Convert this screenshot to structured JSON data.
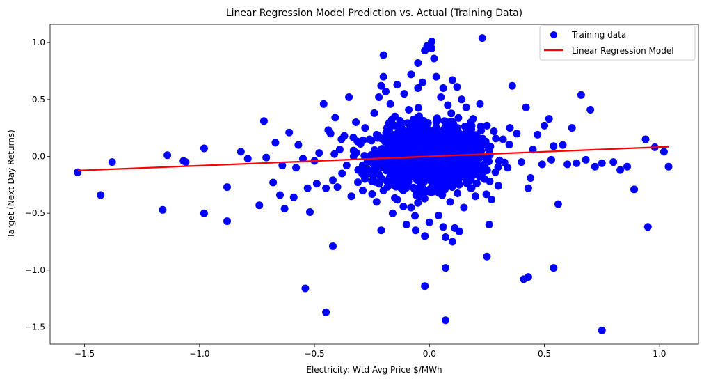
{
  "chart_data": {
    "type": "scatter",
    "title": "Linear Regression Model Prediction vs. Actual (Training Data)",
    "xlabel": "Electricity: Wtd Avg Price $/MWh",
    "ylabel": "Target (Next Day Returns)",
    "xlim": [
      -1.65,
      1.17
    ],
    "ylim": [
      -1.65,
      1.16
    ],
    "xticks": [
      -1.5,
      -1.0,
      -0.5,
      0.0,
      0.5,
      1.0
    ],
    "xtick_labels": [
      "−1.5",
      "−1.0",
      "−0.5",
      "0.0",
      "0.5",
      "1.0"
    ],
    "yticks": [
      -1.5,
      -1.0,
      -0.5,
      0.0,
      0.5,
      1.0
    ],
    "ytick_labels": [
      "−1.5",
      "−1.0",
      "−0.5",
      "0.0",
      "0.5",
      "1.0"
    ],
    "grid": false,
    "legend_position": "top-right",
    "series": [
      {
        "name": "Training data",
        "kind": "scatter",
        "color": "#0000ff",
        "points": [
          [
            -1.53,
            -0.14
          ],
          [
            -1.43,
            -0.34
          ],
          [
            -1.38,
            -0.05
          ],
          [
            -1.16,
            -0.47
          ],
          [
            -1.14,
            0.01
          ],
          [
            -1.07,
            -0.04
          ],
          [
            -1.06,
            -0.05
          ],
          [
            -0.98,
            0.07
          ],
          [
            -0.98,
            -0.5
          ],
          [
            -0.88,
            -0.27
          ],
          [
            -0.88,
            -0.57
          ],
          [
            -0.82,
            0.04
          ],
          [
            -0.79,
            -0.02
          ],
          [
            -0.74,
            -0.43
          ],
          [
            -0.72,
            0.31
          ],
          [
            -0.71,
            -0.01
          ],
          [
            -0.68,
            -0.23
          ],
          [
            -0.67,
            0.12
          ],
          [
            -0.65,
            -0.34
          ],
          [
            -0.64,
            -0.08
          ],
          [
            -0.63,
            -0.46
          ],
          [
            -0.61,
            0.21
          ],
          [
            -0.59,
            -0.36
          ],
          [
            -0.58,
            -0.1
          ],
          [
            -0.57,
            0.1
          ],
          [
            -0.55,
            -0.02
          ],
          [
            -0.53,
            -0.28
          ],
          [
            -0.52,
            -0.49
          ],
          [
            -0.5,
            -0.04
          ],
          [
            -0.49,
            -0.24
          ],
          [
            -0.48,
            0.03
          ],
          [
            -0.46,
            0.46
          ],
          [
            -0.45,
            -0.28
          ],
          [
            -0.44,
            0.23
          ],
          [
            -0.43,
            0.2
          ],
          [
            -0.42,
            -0.21
          ],
          [
            -0.41,
            0.34
          ],
          [
            -0.4,
            -0.27
          ],
          [
            -0.39,
            0.06
          ],
          [
            -0.38,
            -0.15
          ],
          [
            -0.37,
            0.18
          ],
          [
            -0.36,
            -0.08
          ],
          [
            -0.35,
            0.52
          ],
          [
            -0.34,
            -0.35
          ],
          [
            -0.33,
            0.0
          ],
          [
            -0.32,
            0.3
          ],
          [
            -0.31,
            -0.12
          ],
          [
            -0.3,
            0.11
          ],
          [
            -0.29,
            -0.3
          ],
          [
            -0.28,
            0.25
          ],
          [
            -0.27,
            -0.05
          ],
          [
            -0.26,
            0.15
          ],
          [
            -0.25,
            -0.22
          ],
          [
            -0.24,
            0.38
          ],
          [
            -0.23,
            -0.4
          ],
          [
            -0.22,
            0.52
          ],
          [
            -0.21,
            -0.65
          ],
          [
            -0.21,
            0.62
          ],
          [
            -0.2,
            0.89
          ],
          [
            -0.2,
            0.7
          ],
          [
            -0.2,
            -0.3
          ],
          [
            -0.54,
            -1.16
          ],
          [
            -0.45,
            -1.37
          ],
          [
            -0.42,
            -0.79
          ],
          [
            -0.19,
            0.57
          ],
          [
            -0.18,
            -0.1
          ],
          [
            -0.17,
            0.46
          ],
          [
            -0.16,
            -0.5
          ],
          [
            -0.15,
            0.35
          ],
          [
            -0.14,
            0.63
          ],
          [
            -0.13,
            -0.25
          ],
          [
            -0.12,
            0.2
          ],
          [
            -0.11,
            0.55
          ],
          [
            -0.1,
            -0.6
          ],
          [
            -0.09,
            0.41
          ],
          [
            -0.08,
            0.72
          ],
          [
            -0.08,
            -0.45
          ],
          [
            -0.07,
            0.3
          ],
          [
            -0.06,
            -0.65
          ],
          [
            -0.05,
            0.6
          ],
          [
            -0.05,
            0.82
          ],
          [
            -0.04,
            -0.35
          ],
          [
            -0.03,
            0.65
          ],
          [
            -0.02,
            -0.7
          ],
          [
            -0.02,
            0.93
          ],
          [
            -0.01,
            0.97
          ],
          [
            0.0,
            -0.58
          ],
          [
            0.01,
            1.01
          ],
          [
            0.01,
            0.95
          ],
          [
            0.02,
            0.86
          ],
          [
            0.03,
            0.7
          ],
          [
            0.04,
            -0.52
          ],
          [
            0.05,
            0.52
          ],
          [
            0.06,
            -0.62
          ],
          [
            0.06,
            0.6
          ],
          [
            0.07,
            -0.71
          ],
          [
            0.08,
            0.45
          ],
          [
            0.09,
            -0.4
          ],
          [
            0.1,
            0.67
          ],
          [
            0.1,
            -0.75
          ],
          [
            0.11,
            -0.63
          ],
          [
            0.12,
            0.61
          ],
          [
            0.13,
            -0.66
          ],
          [
            0.14,
            0.5
          ],
          [
            0.15,
            -0.45
          ],
          [
            0.16,
            0.43
          ],
          [
            0.18,
            -0.28
          ],
          [
            0.19,
            0.33
          ],
          [
            0.2,
            -0.35
          ],
          [
            0.22,
            0.46
          ],
          [
            0.23,
            1.04
          ],
          [
            0.24,
            -0.2
          ],
          [
            0.25,
            0.27
          ],
          [
            0.26,
            -0.6
          ],
          [
            0.27,
            -0.38
          ],
          [
            0.28,
            0.22
          ],
          [
            0.3,
            -0.26
          ],
          [
            0.32,
            0.15
          ],
          [
            0.34,
            -0.1
          ],
          [
            0.35,
            0.25
          ],
          [
            0.36,
            0.62
          ],
          [
            0.38,
            0.2
          ],
          [
            0.4,
            -0.05
          ],
          [
            0.42,
            0.43
          ],
          [
            0.43,
            -0.28
          ],
          [
            0.44,
            -0.19
          ],
          [
            0.45,
            0.06
          ],
          [
            0.47,
            0.19
          ],
          [
            0.49,
            -0.07
          ],
          [
            0.5,
            0.27
          ],
          [
            0.52,
            0.33
          ],
          [
            0.53,
            -0.03
          ],
          [
            0.54,
            0.09
          ],
          [
            0.56,
            -0.42
          ],
          [
            0.58,
            0.1
          ],
          [
            0.6,
            -0.07
          ],
          [
            0.62,
            0.25
          ],
          [
            0.64,
            -0.06
          ],
          [
            0.66,
            0.54
          ],
          [
            0.68,
            -0.03
          ],
          [
            0.7,
            0.41
          ],
          [
            0.72,
            -0.09
          ],
          [
            0.75,
            -0.06
          ],
          [
            0.8,
            -0.05
          ],
          [
            0.83,
            -0.12
          ],
          [
            0.86,
            -0.09
          ],
          [
            0.89,
            -0.29
          ],
          [
            0.94,
            0.15
          ],
          [
            0.95,
            -0.62
          ],
          [
            0.98,
            0.08
          ],
          [
            1.02,
            0.04
          ],
          [
            1.04,
            -0.09
          ],
          [
            0.07,
            -0.98
          ],
          [
            -0.02,
            -1.14
          ],
          [
            0.07,
            -1.44
          ],
          [
            0.25,
            -0.88
          ],
          [
            0.41,
            -1.08
          ],
          [
            0.43,
            -1.06
          ],
          [
            0.54,
            -0.98
          ],
          [
            0.75,
            -1.53
          ]
        ]
      },
      {
        "name": "Linear Regression Model",
        "kind": "line",
        "color": "#ff0000",
        "x": [
          -1.53,
          1.04
        ],
        "y": [
          -0.125,
          0.085
        ]
      }
    ]
  }
}
